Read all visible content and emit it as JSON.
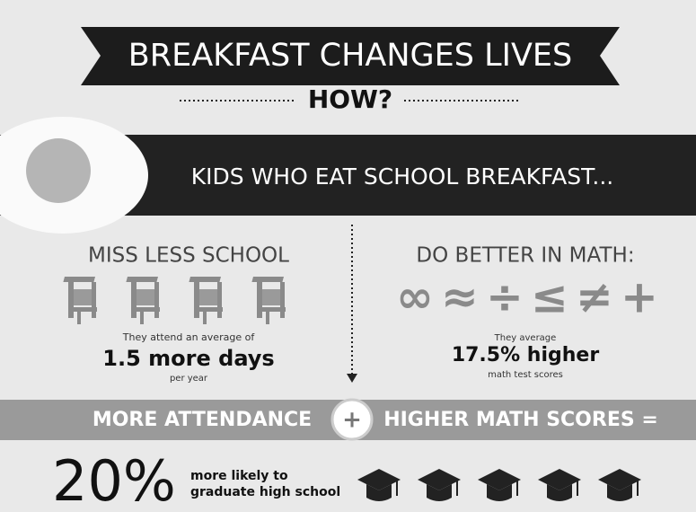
{
  "header": {
    "title": "BREAKFAST CHANGES LIVES",
    "subtitle": "HOW?"
  },
  "banner": {
    "text": "KIDS WHO EAT SCHOOL BREAKFAST..."
  },
  "left": {
    "heading": "MISS LESS SCHOOL",
    "line1": "They attend an average of",
    "highlight": "1.5 more days",
    "line2": "per year"
  },
  "right": {
    "heading": "DO BETTER IN MATH:",
    "symbols": [
      "∞",
      "≈",
      "÷",
      "≤",
      "≠",
      "+"
    ],
    "line1": "They average",
    "highlight": "17.5% higher",
    "line2": "math test scores"
  },
  "equation": {
    "left": "MORE ATTENDANCE",
    "operator": "+",
    "right": "HIGHER MATH SCORES ="
  },
  "result": {
    "stat": "20%",
    "line1": "more likely to",
    "line2": "graduate high school"
  }
}
